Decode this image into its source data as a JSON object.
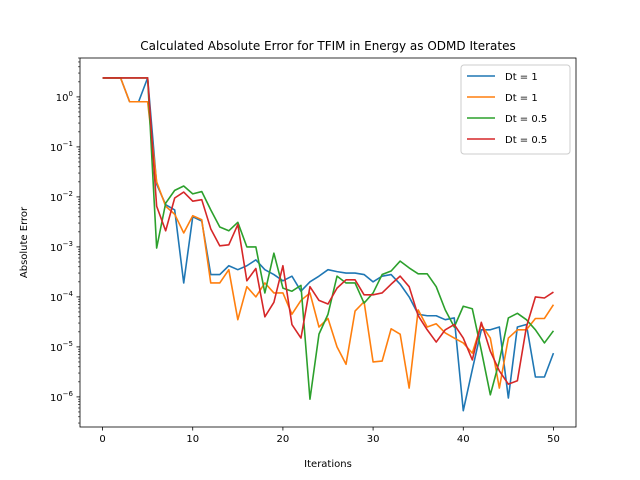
{
  "chart_data": {
    "type": "line",
    "title": "Calculated Absolute Error for TFIM in Energy as ODMD Iterates",
    "xlabel": "Iterations",
    "ylabel": "Absolute Error",
    "xlim": [
      -2.5,
      52.5
    ],
    "ylim": [
      2.5e-07,
      6.0
    ],
    "yscale": "log",
    "grid": false,
    "legend_position": "top-right",
    "x_ticks": [
      0,
      10,
      20,
      30,
      40,
      50
    ],
    "y_ticks": [
      {
        "value": 1e-06,
        "base": "10",
        "exp": "−6"
      },
      {
        "value": 1e-05,
        "base": "10",
        "exp": "−5"
      },
      {
        "value": 0.0001,
        "base": "10",
        "exp": "−4"
      },
      {
        "value": 0.001,
        "base": "10",
        "exp": "−3"
      },
      {
        "value": 0.01,
        "base": "10",
        "exp": "−2"
      },
      {
        "value": 0.1,
        "base": "10",
        "exp": "−1"
      },
      {
        "value": 1,
        "base": "10",
        "exp": "0"
      }
    ],
    "x": [
      0,
      1,
      2,
      3,
      4,
      5,
      6,
      7,
      8,
      9,
      10,
      11,
      12,
      13,
      14,
      15,
      16,
      17,
      18,
      19,
      20,
      21,
      22,
      23,
      24,
      25,
      26,
      27,
      28,
      29,
      30,
      31,
      32,
      33,
      34,
      35,
      36,
      37,
      38,
      39,
      40,
      41,
      42,
      43,
      44,
      45,
      46,
      47,
      48,
      49,
      50
    ],
    "series": [
      {
        "name": "Dt = 1",
        "color": "#1f77b4",
        "values": [
          2.4,
          2.4,
          2.4,
          0.8,
          0.8,
          2.4,
          0.018,
          0.007,
          0.0055,
          0.00019,
          0.004,
          0.0033,
          0.00028,
          0.00028,
          0.00042,
          0.00035,
          0.00042,
          0.00055,
          0.00035,
          0.00028,
          0.00021,
          0.00026,
          0.00013,
          0.0002,
          0.00026,
          0.00035,
          0.00032,
          0.0003,
          0.0003,
          0.00028,
          0.0002,
          0.00026,
          0.00028,
          0.00018,
          0.0001,
          4.5e-05,
          4.2e-05,
          4.2e-05,
          3.5e-05,
          3.8e-05,
          5.3e-07,
          3.5e-06,
          2.2e-05,
          2.2e-05,
          2.5e-05,
          9.5e-07,
          2.5e-05,
          2.8e-05,
          2.5e-06,
          2.5e-06,
          7.5e-06
        ]
      },
      {
        "name": "Dt = 1",
        "color": "#ff7f0e",
        "values": [
          2.4,
          2.4,
          2.4,
          0.8,
          0.8,
          0.8,
          0.02,
          0.0065,
          0.0045,
          0.0019,
          0.0042,
          0.0035,
          0.00019,
          0.00019,
          0.00035,
          3.5e-05,
          0.00016,
          0.0001,
          0.00019,
          0.00012,
          0.00012,
          4.5e-05,
          8.5e-05,
          0.00012,
          2.5e-05,
          3.7e-05,
          1e-05,
          4.5e-06,
          5.2e-05,
          8e-05,
          5e-06,
          5.2e-06,
          2.3e-05,
          1.8e-05,
          1.5e-06,
          5.5e-05,
          2.5e-05,
          2.9e-05,
          1.9e-05,
          1.5e-05,
          1.2e-05,
          7.5e-06,
          2.8e-05,
          1.5e-05,
          1.5e-06,
          1.5e-05,
          2.2e-05,
          2.2e-05,
          3.7e-05,
          3.7e-05,
          7e-05
        ]
      },
      {
        "name": "Dt = 0.5",
        "color": "#2ca02c",
        "values": [
          2.4,
          2.4,
          2.4,
          2.4,
          2.4,
          2.4,
          0.00095,
          0.0075,
          0.0135,
          0.0165,
          0.0115,
          0.0128,
          0.0055,
          0.0025,
          0.0021,
          0.0031,
          0.001,
          0.001,
          0.00012,
          0.00075,
          0.00015,
          0.00013,
          0.00017,
          9e-07,
          1.8e-05,
          4.5e-05,
          0.00026,
          0.00019,
          0.00019,
          7.5e-05,
          0.00012,
          0.00028,
          0.00033,
          0.00052,
          0.00038,
          0.00029,
          0.00029,
          0.00016,
          5.5e-05,
          2.5e-05,
          6.5e-05,
          5.8e-05,
          8.5e-06,
          1.1e-06,
          5.2e-06,
          3.8e-05,
          4.7e-05,
          3.5e-05,
          2.2e-05,
          1.2e-05,
          2.1e-05
        ]
      },
      {
        "name": "Dt = 0.5",
        "color": "#d62728",
        "values": [
          2.4,
          2.4,
          2.4,
          2.4,
          2.4,
          2.4,
          0.0065,
          0.0021,
          0.0095,
          0.0125,
          0.0082,
          0.0088,
          0.0023,
          0.00105,
          0.0011,
          0.0028,
          0.00021,
          0.00037,
          4e-05,
          7.8e-05,
          0.00042,
          2.8e-05,
          1.5e-05,
          0.00016,
          8.5e-05,
          7.2e-05,
          0.00015,
          0.00022,
          0.00022,
          0.00011,
          0.00011,
          0.00012,
          0.00018,
          0.00026,
          0.00016,
          4.2e-05,
          2.2e-05,
          1.25e-05,
          2.2e-05,
          2.8e-05,
          1.5e-05,
          5.5e-06,
          3.1e-05,
          8.2e-06,
          3.3e-06,
          1.8e-06,
          2.1e-06,
          2.5e-05,
          0.0001,
          9.5e-05,
          0.000125
        ]
      }
    ]
  }
}
